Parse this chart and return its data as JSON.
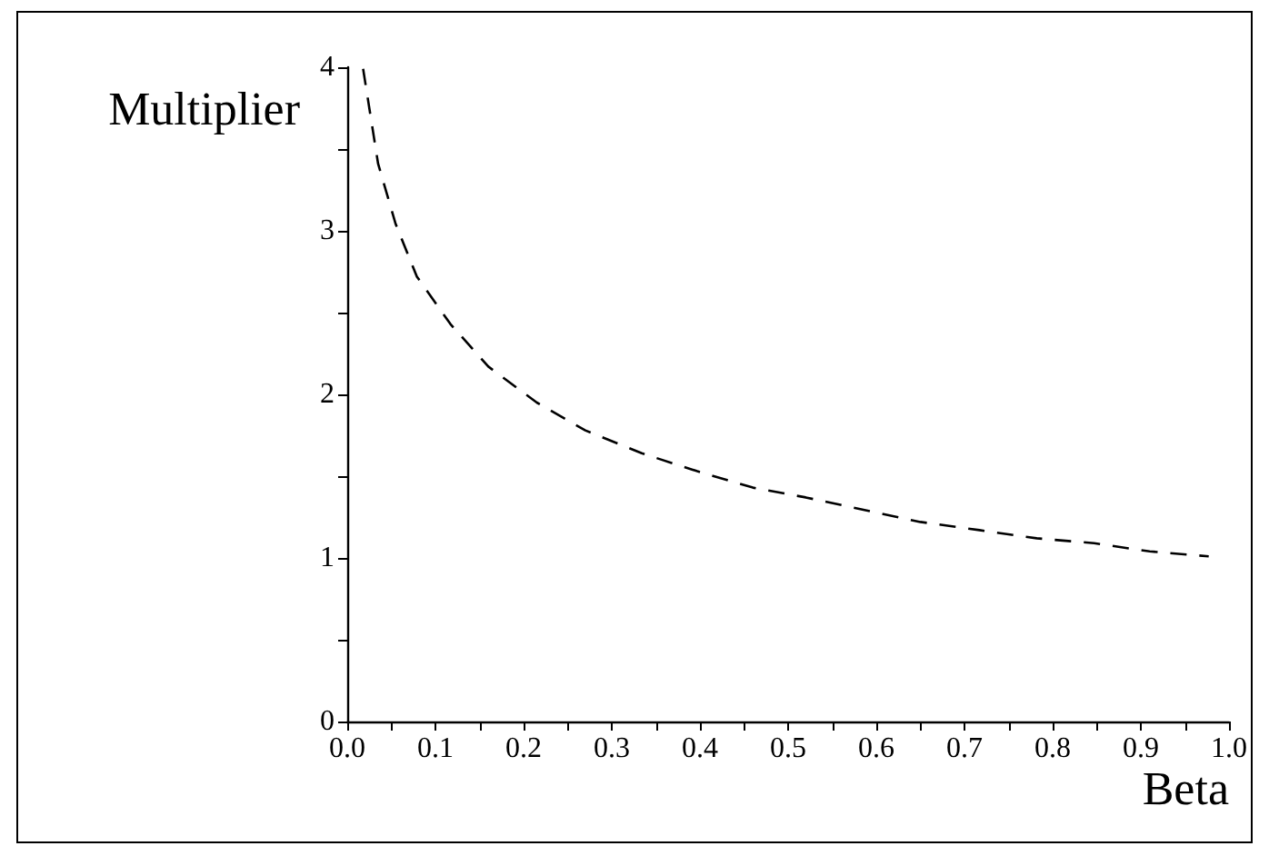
{
  "chart_data": {
    "type": "line",
    "xlabel": "Beta",
    "ylabel": "Multiplier",
    "x": [
      0.018,
      0.035,
      0.055,
      0.079,
      0.117,
      0.16,
      0.215,
      0.27,
      0.334,
      0.397,
      0.46,
      0.52,
      0.589,
      0.65,
      0.717,
      0.782,
      0.847,
      0.91,
      0.977
    ],
    "series": [
      {
        "color": "#000000",
        "values": [
          3.99,
          3.41,
          3.04,
          2.72,
          2.43,
          2.17,
          1.95,
          1.78,
          1.64,
          1.53,
          1.43,
          1.37,
          1.29,
          1.22,
          1.17,
          1.12,
          1.09,
          1.04,
          1.01
        ]
      }
    ],
    "xlim": [
      0,
      1
    ],
    "xticks": [
      {
        "value": 0,
        "label": "0.0"
      },
      {
        "value": 0.05,
        "label": null
      },
      {
        "value": 0.1,
        "label": "0.1"
      },
      {
        "value": 0.15,
        "label": null
      },
      {
        "value": 0.2,
        "label": "0.2"
      },
      {
        "value": 0.25,
        "label": null
      },
      {
        "value": 0.3,
        "label": "0.3"
      },
      {
        "value": 0.35,
        "label": null
      },
      {
        "value": 0.4,
        "label": "0.4"
      },
      {
        "value": 0.45,
        "label": null
      },
      {
        "value": 0.5,
        "label": "0.5"
      },
      {
        "value": 0.55,
        "label": null
      },
      {
        "value": 0.6,
        "label": "0.6"
      },
      {
        "value": 0.65,
        "label": null
      },
      {
        "value": 0.7,
        "label": "0.7"
      },
      {
        "value": 0.75,
        "label": null
      },
      {
        "value": 0.8,
        "label": "0.8"
      },
      {
        "value": 0.85,
        "label": null
      },
      {
        "value": 0.9,
        "label": "0.9"
      },
      {
        "value": 0.95,
        "label": null
      },
      {
        "value": 1,
        "label": "1.0"
      }
    ],
    "ylim": [
      0,
      4
    ],
    "yticks": [
      0,
      {
        "value": 0.5,
        "label": null
      },
      1,
      {
        "value": 1.5,
        "label": null
      },
      2,
      {
        "value": 2.5,
        "label": null
      },
      3,
      {
        "value": 3.5,
        "label": null
      },
      4
    ],
    "grid": false,
    "marker": "none",
    "line_style": "dashed"
  }
}
